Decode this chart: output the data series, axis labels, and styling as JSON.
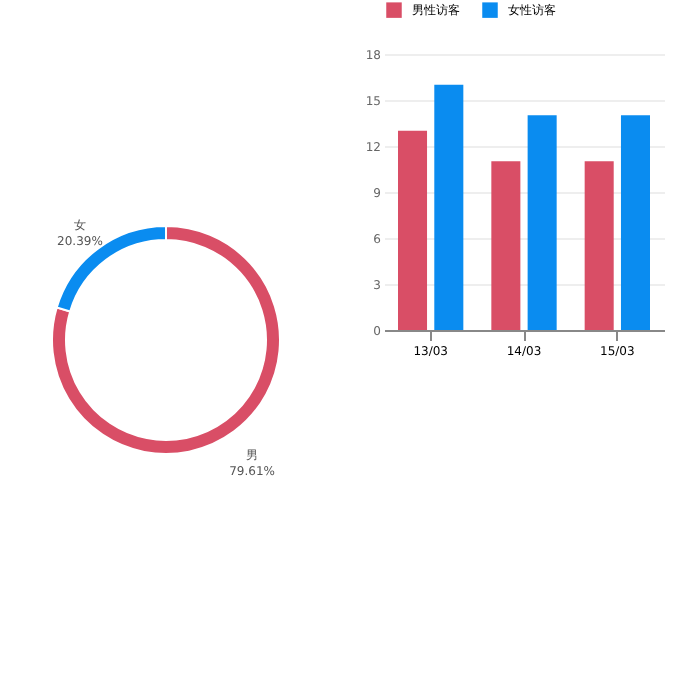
{
  "chart_data": [
    {
      "type": "donut",
      "categories": [
        "男",
        "女"
      ],
      "values": [
        79.61,
        20.39
      ],
      "colors": [
        "#d94e66",
        "#0a8cf0"
      ],
      "value_labels": [
        "79.61%",
        "20.39%"
      ],
      "legend": false
    },
    {
      "type": "bar",
      "categories": [
        "13/03",
        "14/03",
        "15/03"
      ],
      "series": [
        {
          "name": "男性访客",
          "color": "#d94e66",
          "values": [
            13,
            11,
            11
          ]
        },
        {
          "name": "女性访客",
          "color": "#0a8cf0",
          "values": [
            16,
            14,
            14
          ]
        }
      ],
      "ylim": [
        0,
        18
      ],
      "yticks": [
        0,
        3,
        6,
        9,
        12,
        15,
        18
      ],
      "grid": "y",
      "legend": "top"
    }
  ]
}
